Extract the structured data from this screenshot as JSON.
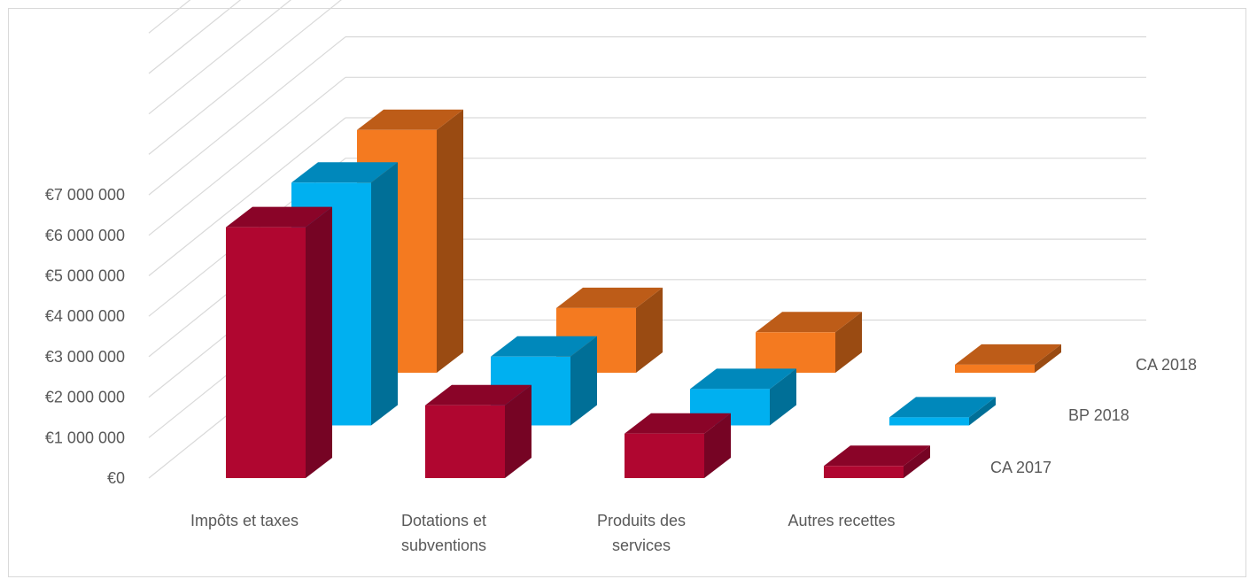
{
  "chart_data": {
    "type": "bar",
    "title": "",
    "xlabel": "",
    "ylabel": "",
    "ylim": [
      0,
      7000000
    ],
    "y_ticks": [
      "€0",
      "€1 000 000",
      "€2 000 000",
      "€3 000 000",
      "€4 000 000",
      "€5 000 000",
      "€6 000 000",
      "€7 000 000"
    ],
    "categories": [
      [
        "Impôts et taxes"
      ],
      [
        "Dotations et",
        "subventions"
      ],
      [
        "Produits des",
        "services"
      ],
      [
        "Autres recettes"
      ]
    ],
    "series": [
      {
        "name": "CA 2017",
        "values": [
          6200000,
          1800000,
          1100000,
          300000
        ]
      },
      {
        "name": "BP 2018",
        "values": [
          6000000,
          1700000,
          900000,
          200000
        ]
      },
      {
        "name": "CA 2018",
        "values": [
          6000000,
          1600000,
          1000000,
          200000
        ]
      }
    ],
    "grid": true,
    "legend": "series labels on depth axis (right)",
    "colors": {
      "CA 2017": {
        "front": "#b00630",
        "side": "#760424",
        "top": "#8a0428"
      },
      "BP 2018": {
        "front": "#00b0f0",
        "side": "#006f97",
        "top": "#0088bb"
      },
      "CA 2018": {
        "front": "#f47a20",
        "side": "#9a4b12",
        "top": "#bd5c18"
      },
      "grid": "#d9d9d9",
      "text": "#595959"
    }
  }
}
